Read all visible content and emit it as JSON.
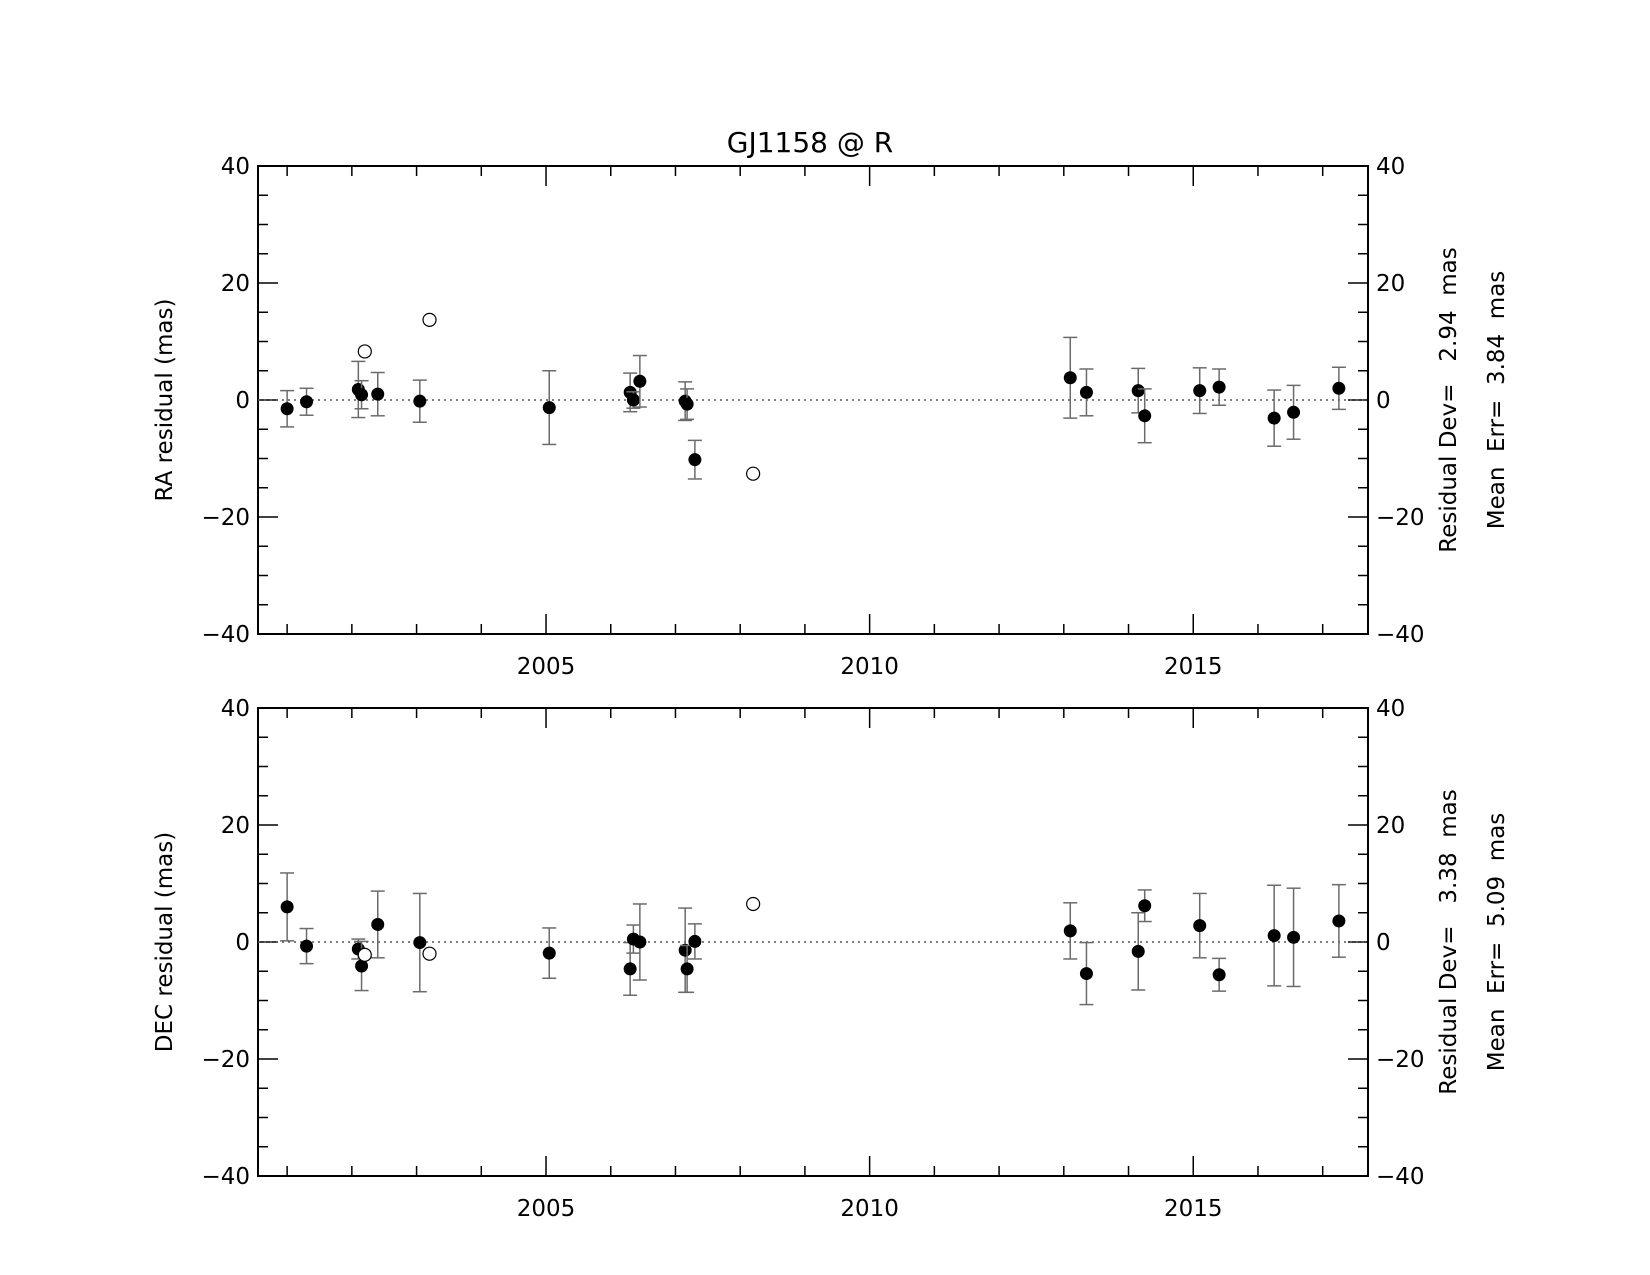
{
  "title": "GJ1158 @ R",
  "chart_data": [
    {
      "type": "scatter",
      "panel": "top",
      "ylabel": "RA residual (mas)",
      "xlabel": "",
      "xlim": [
        2000.55,
        2017.7
      ],
      "ylim": [
        -40,
        40
      ],
      "xticks": [
        2005,
        2010,
        2015
      ],
      "yticks": [
        -40,
        -20,
        0,
        20,
        40
      ],
      "zero_line": "dotted",
      "stats": {
        "residual_dev": "Residual Dev=   2.94  mas",
        "mean_err": "Mean  Err=  3.84  mas"
      },
      "series": [
        {
          "marker": "filled-circle",
          "points": [
            {
              "x": 2001.0,
              "y": -1.5,
              "err": 3.1
            },
            {
              "x": 2001.3,
              "y": -0.3,
              "err": 2.3
            },
            {
              "x": 2002.1,
              "y": 1.8,
              "err": 4.8
            },
            {
              "x": 2002.15,
              "y": 0.9,
              "err": 2.4
            },
            {
              "x": 2002.4,
              "y": 1.0,
              "err": 3.7
            },
            {
              "x": 2003.05,
              "y": -0.2,
              "err": 3.6
            },
            {
              "x": 2005.05,
              "y": -1.3,
              "err": 6.3
            },
            {
              "x": 2006.3,
              "y": 1.3,
              "err": 3.3
            },
            {
              "x": 2006.35,
              "y": 0.0,
              "err": 1.4
            },
            {
              "x": 2006.45,
              "y": 3.2,
              "err": 4.4
            },
            {
              "x": 2007.15,
              "y": -0.2,
              "err": 3.3
            },
            {
              "x": 2007.18,
              "y": -0.7,
              "err": 2.6
            },
            {
              "x": 2007.3,
              "y": -10.2,
              "err": 3.3
            },
            {
              "x": 2013.1,
              "y": 3.8,
              "err": 6.9
            },
            {
              "x": 2013.35,
              "y": 1.3,
              "err": 4.0
            },
            {
              "x": 2014.15,
              "y": 1.6,
              "err": 3.8
            },
            {
              "x": 2014.25,
              "y": -2.7,
              "err": 4.6
            },
            {
              "x": 2015.1,
              "y": 1.6,
              "err": 3.9
            },
            {
              "x": 2015.4,
              "y": 2.2,
              "err": 3.1
            },
            {
              "x": 2016.25,
              "y": -3.1,
              "err": 4.8
            },
            {
              "x": 2016.55,
              "y": -2.1,
              "err": 4.6
            },
            {
              "x": 2017.25,
              "y": 2.0,
              "err": 3.6
            }
          ]
        },
        {
          "marker": "open-circle",
          "points": [
            {
              "x": 2002.2,
              "y": 8.3
            },
            {
              "x": 2003.2,
              "y": 13.7
            },
            {
              "x": 2008.2,
              "y": -12.6
            }
          ]
        }
      ]
    },
    {
      "type": "scatter",
      "panel": "bottom",
      "ylabel": "DEC residual (mas)",
      "xlabel": "",
      "xlim": [
        2000.55,
        2017.7
      ],
      "ylim": [
        -40,
        40
      ],
      "xticks": [
        2005,
        2010,
        2015
      ],
      "yticks": [
        -40,
        -20,
        0,
        20,
        40
      ],
      "zero_line": "dotted",
      "stats": {
        "residual_dev": "Residual Dev=   3.38  mas",
        "mean_err": "Mean  Err=  5.09  mas"
      },
      "series": [
        {
          "marker": "filled-circle",
          "points": [
            {
              "x": 2001.0,
              "y": 6.0,
              "err": 5.8
            },
            {
              "x": 2001.3,
              "y": -0.7,
              "err": 3.0
            },
            {
              "x": 2002.1,
              "y": -1.2,
              "err": 1.7
            },
            {
              "x": 2002.15,
              "y": -4.1,
              "err": 4.2
            },
            {
              "x": 2002.4,
              "y": 3.0,
              "err": 5.7
            },
            {
              "x": 2003.05,
              "y": -0.1,
              "err": 8.4
            },
            {
              "x": 2005.05,
              "y": -1.9,
              "err": 4.3
            },
            {
              "x": 2006.3,
              "y": -4.6,
              "err": 4.5
            },
            {
              "x": 2006.35,
              "y": 0.5,
              "err": 2.4
            },
            {
              "x": 2006.45,
              "y": 0.0,
              "err": 6.5
            },
            {
              "x": 2007.15,
              "y": -1.4,
              "err": 7.2
            },
            {
              "x": 2007.18,
              "y": -4.6,
              "err": 4.0
            },
            {
              "x": 2007.3,
              "y": 0.1,
              "err": 3.0
            },
            {
              "x": 2013.1,
              "y": 1.9,
              "err": 4.8
            },
            {
              "x": 2013.35,
              "y": -5.4,
              "err": 5.3
            },
            {
              "x": 2014.15,
              "y": -1.6,
              "err": 6.6
            },
            {
              "x": 2014.25,
              "y": 6.2,
              "err": 2.7
            },
            {
              "x": 2015.1,
              "y": 2.8,
              "err": 5.5
            },
            {
              "x": 2015.4,
              "y": -5.6,
              "err": 2.8
            },
            {
              "x": 2016.25,
              "y": 1.1,
              "err": 8.6
            },
            {
              "x": 2016.55,
              "y": 0.8,
              "err": 8.4
            },
            {
              "x": 2017.25,
              "y": 3.6,
              "err": 6.2
            }
          ]
        },
        {
          "marker": "open-circle",
          "points": [
            {
              "x": 2002.2,
              "y": -2.2
            },
            {
              "x": 2003.2,
              "y": -2.0
            },
            {
              "x": 2008.2,
              "y": 6.5
            }
          ]
        }
      ]
    }
  ]
}
